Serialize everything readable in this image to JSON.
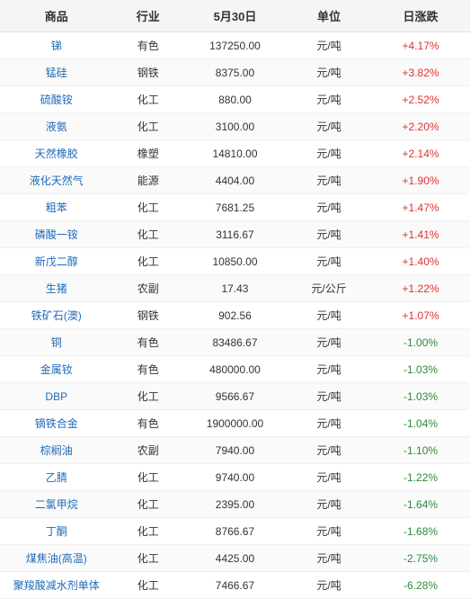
{
  "headers": {
    "product": "商品",
    "industry": "行业",
    "date": "5月30日",
    "unit": "单位",
    "change": "日涨跌"
  },
  "columnWidths": [
    "24%",
    "15%",
    "22%",
    "18%",
    "21%"
  ],
  "rows": [
    {
      "product": "锑",
      "industry": "有色",
      "price": "137250.00",
      "unit": "元/吨",
      "change": "+4.17%",
      "direction": "pos"
    },
    {
      "product": "锰硅",
      "industry": "钢铁",
      "price": "8375.00",
      "unit": "元/吨",
      "change": "+3.82%",
      "direction": "pos"
    },
    {
      "product": "硫酸铵",
      "industry": "化工",
      "price": "880.00",
      "unit": "元/吨",
      "change": "+2.52%",
      "direction": "pos"
    },
    {
      "product": "液氨",
      "industry": "化工",
      "price": "3100.00",
      "unit": "元/吨",
      "change": "+2.20%",
      "direction": "pos"
    },
    {
      "product": "天然橡胶",
      "industry": "橡塑",
      "price": "14810.00",
      "unit": "元/吨",
      "change": "+2.14%",
      "direction": "pos"
    },
    {
      "product": "液化天然气",
      "industry": "能源",
      "price": "4404.00",
      "unit": "元/吨",
      "change": "+1.90%",
      "direction": "pos"
    },
    {
      "product": "粗苯",
      "industry": "化工",
      "price": "7681.25",
      "unit": "元/吨",
      "change": "+1.47%",
      "direction": "pos"
    },
    {
      "product": "磷酸一铵",
      "industry": "化工",
      "price": "3116.67",
      "unit": "元/吨",
      "change": "+1.41%",
      "direction": "pos"
    },
    {
      "product": "新戊二醇",
      "industry": "化工",
      "price": "10850.00",
      "unit": "元/吨",
      "change": "+1.40%",
      "direction": "pos"
    },
    {
      "product": "生猪",
      "industry": "农副",
      "price": "17.43",
      "unit": "元/公斤",
      "change": "+1.22%",
      "direction": "pos"
    },
    {
      "product": "铁矿石(澳)",
      "industry": "钢铁",
      "price": "902.56",
      "unit": "元/吨",
      "change": "+1.07%",
      "direction": "pos"
    },
    {
      "product": "铜",
      "industry": "有色",
      "price": "83486.67",
      "unit": "元/吨",
      "change": "-1.00%",
      "direction": "neg"
    },
    {
      "product": "金属钕",
      "industry": "有色",
      "price": "480000.00",
      "unit": "元/吨",
      "change": "-1.03%",
      "direction": "neg"
    },
    {
      "product": "DBP",
      "industry": "化工",
      "price": "9566.67",
      "unit": "元/吨",
      "change": "-1.03%",
      "direction": "neg"
    },
    {
      "product": "镝铁合金",
      "industry": "有色",
      "price": "1900000.00",
      "unit": "元/吨",
      "change": "-1.04%",
      "direction": "neg"
    },
    {
      "product": "棕榈油",
      "industry": "农副",
      "price": "7940.00",
      "unit": "元/吨",
      "change": "-1.10%",
      "direction": "neg"
    },
    {
      "product": "乙腈",
      "industry": "化工",
      "price": "9740.00",
      "unit": "元/吨",
      "change": "-1.22%",
      "direction": "neg"
    },
    {
      "product": "二氯甲烷",
      "industry": "化工",
      "price": "2395.00",
      "unit": "元/吨",
      "change": "-1.64%",
      "direction": "neg"
    },
    {
      "product": "丁酮",
      "industry": "化工",
      "price": "8766.67",
      "unit": "元/吨",
      "change": "-1.68%",
      "direction": "neg"
    },
    {
      "product": "煤焦油(高温)",
      "industry": "化工",
      "price": "4425.00",
      "unit": "元/吨",
      "change": "-2.75%",
      "direction": "neg"
    },
    {
      "product": "聚羧酸减水剂单体",
      "industry": "化工",
      "price": "7466.67",
      "unit": "元/吨",
      "change": "-6.28%",
      "direction": "neg"
    }
  ]
}
